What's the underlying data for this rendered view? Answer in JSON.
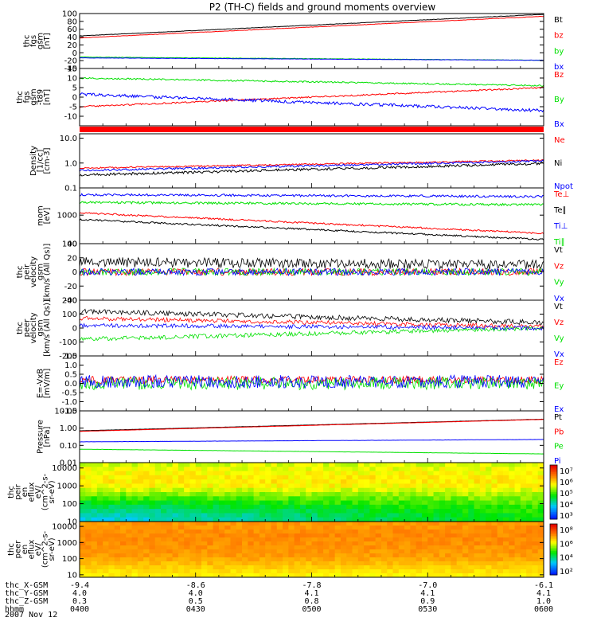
{
  "title": "P2 (TH-C) fields and ground moments overview",
  "date": "2007 Nov 12",
  "colors": {
    "black": "#000000",
    "red": "#ff0000",
    "green": "#00e000",
    "blue": "#0000ff"
  },
  "x_axis": {
    "rows": [
      {
        "label": "thc_X-GSM",
        "values": [
          "-9.4",
          "-8.6",
          "-7.8",
          "-7.0",
          "-6.1"
        ]
      },
      {
        "label": "thc_Y-GSM",
        "values": [
          "4.0",
          "4.0",
          "4.1",
          "4.1",
          "4.1"
        ]
      },
      {
        "label": "thc_Z-GSM",
        "values": [
          "0.3",
          "0.5",
          "0.8",
          "0.9",
          "1.0"
        ]
      },
      {
        "label": "hhmm",
        "values": [
          "0400",
          "0430",
          "0500",
          "0530",
          "0600"
        ]
      }
    ]
  },
  "chart_data": [
    {
      "type": "line",
      "id": "p1",
      "ylabel": [
        "thc",
        "fgs",
        "gsm",
        "[nT]"
      ],
      "ylim": [
        -40,
        100
      ],
      "yticks": [
        {
          "v": 100,
          "t": "100"
        },
        {
          "v": 80,
          "t": "80"
        },
        {
          "v": 60,
          "t": "60"
        },
        {
          "v": 40,
          "t": "40"
        },
        {
          "v": 20,
          "t": "20"
        },
        {
          "v": 0,
          "t": "0"
        },
        {
          "v": -20,
          "t": "-20"
        },
        {
          "v": -40,
          "t": "-40"
        }
      ],
      "series": [
        {
          "name": "Bt",
          "color": "black",
          "start": 43,
          "end": 98,
          "noise": 0.5
        },
        {
          "name": "bz",
          "color": "red",
          "start": 38,
          "end": 93,
          "noise": 0.5
        },
        {
          "name": "by",
          "color": "green",
          "start": -11,
          "end": -19,
          "noise": 0.5
        },
        {
          "name": "bx",
          "color": "blue",
          "start": -13,
          "end": -19,
          "noise": 0.4
        }
      ]
    },
    {
      "type": "line",
      "id": "p2",
      "ylabel": [
        "thc",
        "fgs",
        "gsm",
        "-t89",
        "[nT]"
      ],
      "ylim": [
        -15,
        15
      ],
      "yticks": [
        {
          "v": 15,
          "t": "15"
        },
        {
          "v": 10,
          "t": "10"
        },
        {
          "v": 5,
          "t": "5"
        },
        {
          "v": 0,
          "t": "0"
        },
        {
          "v": -5,
          "t": "-5"
        },
        {
          "v": -10,
          "t": "-10"
        }
      ],
      "series": [
        {
          "name": "Bz",
          "color": "red",
          "start": -5,
          "end": 5,
          "noise": 0.4
        },
        {
          "name": "By",
          "color": "green",
          "start": 10,
          "end": 6,
          "noise": 0.4
        },
        {
          "name": "Bx",
          "color": "blue",
          "start": 1.5,
          "end": -7,
          "noise": 0.8
        }
      ]
    },
    {
      "type": "line",
      "id": "p3",
      "log": true,
      "ylabel": [
        "Density",
        "[1/cc]",
        "[cm-3]"
      ],
      "ylim": [
        0.1,
        15
      ],
      "yticks": [
        {
          "v": 10,
          "t": "10.0"
        },
        {
          "v": 1,
          "t": "1.0"
        },
        {
          "v": 0.1,
          "t": "0.1"
        }
      ],
      "series": [
        {
          "name": "Ne",
          "color": "red",
          "start": 0.62,
          "end": 1.3,
          "noise": 0.03
        },
        {
          "name": "Ni",
          "color": "black",
          "start": 0.33,
          "end": 0.95,
          "noise": 0.05
        },
        {
          "name": "Npot",
          "color": "blue",
          "start": 0.5,
          "end": 1.2,
          "noise": 0.04
        }
      ]
    },
    {
      "type": "line",
      "id": "p4",
      "log": true,
      "ylabel": [
        "mom",
        "[eV]"
      ],
      "ylim": [
        100,
        9000
      ],
      "yticks": [
        {
          "v": 1000,
          "t": "1000"
        },
        {
          "v": 100,
          "t": "100"
        }
      ],
      "series": [
        {
          "name": "Te⊥",
          "color": "red",
          "start": 1200,
          "end": 230,
          "noise": 0.03
        },
        {
          "name": "Te∥",
          "color": "black",
          "start": 700,
          "end": 140,
          "noise": 0.03
        },
        {
          "name": "Ti⊥",
          "color": "blue",
          "start": 5200,
          "end": 4500,
          "noise": 0.04
        },
        {
          "name": "Ti∥",
          "color": "green",
          "start": 2800,
          "end": 2300,
          "noise": 0.04
        }
      ]
    },
    {
      "type": "line",
      "id": "p5",
      "ylabel": [
        "thc",
        "peir",
        "velocity",
        "gsm",
        "[km/s (All Qs)]"
      ],
      "ylim": [
        -40,
        40
      ],
      "yticks": [
        {
          "v": 40,
          "t": "40"
        },
        {
          "v": 20,
          "t": "20"
        },
        {
          "v": 0,
          "t": "0"
        },
        {
          "v": -20,
          "t": "-20"
        },
        {
          "v": -40,
          "t": "-40"
        }
      ],
      "series": [
        {
          "name": "Vt",
          "color": "black",
          "start": 14,
          "end": 10,
          "noise": 7
        },
        {
          "name": "Vz",
          "color": "red",
          "start": 0,
          "end": 0,
          "noise": 5
        },
        {
          "name": "Vy",
          "color": "green",
          "start": 0,
          "end": 0,
          "noise": 5
        },
        {
          "name": "Vx",
          "color": "blue",
          "start": 0,
          "end": 0,
          "noise": 5
        }
      ]
    },
    {
      "type": "line",
      "id": "p6",
      "ylabel": [
        "thc",
        "peer",
        "velocity",
        "gsm",
        "[km/s (All Qs)]"
      ],
      "ylim": [
        -200,
        200
      ],
      "yticks": [
        {
          "v": 200,
          "t": "200"
        },
        {
          "v": 100,
          "t": "100"
        },
        {
          "v": 0,
          "t": "0"
        },
        {
          "v": -100,
          "t": "-100"
        },
        {
          "v": -200,
          "t": "-200"
        }
      ],
      "series": [
        {
          "name": "Vt",
          "color": "black",
          "start": 120,
          "end": 40,
          "noise": 18
        },
        {
          "name": "Vz",
          "color": "red",
          "start": 70,
          "end": 10,
          "noise": 15
        },
        {
          "name": "Vy",
          "color": "green",
          "start": -80,
          "end": 0,
          "noise": 15
        },
        {
          "name": "Vx",
          "color": "blue",
          "start": 20,
          "end": 0,
          "noise": 15
        }
      ]
    },
    {
      "type": "line",
      "id": "p7",
      "ylabel": [
        "E=-VxB",
        "[mV/m]"
      ],
      "ylim": [
        -1.5,
        1.5
      ],
      "yticks": [
        {
          "v": 1.5,
          "t": "1.5"
        },
        {
          "v": 1.0,
          "t": "1.0"
        },
        {
          "v": 0.5,
          "t": "0.5"
        },
        {
          "v": 0,
          "t": "0.0"
        },
        {
          "v": -0.5,
          "t": "-0.5"
        },
        {
          "v": -1.0,
          "t": "-1.0"
        },
        {
          "v": -1.5,
          "t": "-1.5"
        }
      ],
      "series": [
        {
          "name": "Ez",
          "color": "red",
          "start": 0.2,
          "end": 0.2,
          "noise": 0.2
        },
        {
          "name": "Ey",
          "color": "green",
          "start": 0,
          "end": 0,
          "noise": 0.35
        },
        {
          "name": "Ex",
          "color": "blue",
          "start": 0.1,
          "end": 0.1,
          "noise": 0.35
        }
      ]
    },
    {
      "type": "line",
      "id": "p8",
      "log": true,
      "ylabel": [
        "Pressure",
        "[nPa]"
      ],
      "ylim": [
        0.01,
        10
      ],
      "yticks": [
        {
          "v": 10,
          "t": "10.00"
        },
        {
          "v": 1,
          "t": "1.00"
        },
        {
          "v": 0.1,
          "t": "0.10"
        },
        {
          "v": 0.01,
          "t": "0.01"
        }
      ],
      "series": [
        {
          "name": "Pt",
          "color": "black",
          "start": 0.7,
          "end": 3.3,
          "noise": 0.005
        },
        {
          "name": "Pb",
          "color": "red",
          "start": 0.65,
          "end": 3.2,
          "noise": 0.005
        },
        {
          "name": "Pe",
          "color": "green",
          "start": 0.06,
          "end": 0.032,
          "noise": 0.005
        },
        {
          "name": "Pi",
          "color": "blue",
          "start": 0.16,
          "end": 0.22,
          "noise": 0.005
        }
      ]
    },
    {
      "type": "heatmap",
      "id": "p9",
      "ylabel": [
        "thc",
        "peir",
        "en",
        "eflux",
        "eV/",
        "(cm^2-s-",
        "sr-eV)"
      ],
      "ylim": [
        10,
        20000
      ],
      "yticks": [
        {
          "v": 10000,
          "t": "10000"
        },
        {
          "v": 1000,
          "t": "1000"
        },
        {
          "v": 100,
          "t": "100"
        },
        {
          "v": 10,
          "t": "10"
        }
      ],
      "colorbar": {
        "ticks": [
          "10⁷",
          "10⁶",
          "10⁵",
          "10⁴",
          "10³"
        ]
      }
    },
    {
      "type": "heatmap",
      "id": "p10",
      "ylabel": [
        "thc",
        "peer",
        "en",
        "eflux",
        "eV/",
        "(cm^2-s-",
        "sr-eV)"
      ],
      "ylim": [
        7,
        20000
      ],
      "yticks": [
        {
          "v": 10000,
          "t": "10000"
        },
        {
          "v": 1000,
          "t": "1000"
        },
        {
          "v": 100,
          "t": "100"
        },
        {
          "v": 10,
          "t": "10"
        }
      ],
      "colorbar": {
        "ticks": [
          "10⁸",
          "10⁶",
          "10⁴",
          "10²"
        ]
      }
    }
  ]
}
